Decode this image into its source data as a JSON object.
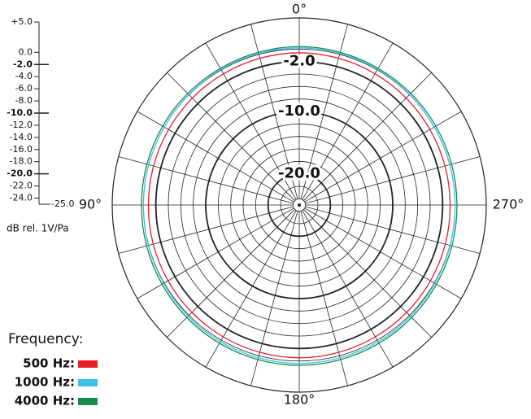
{
  "chart_data": {
    "type": "polar",
    "axis_label": "dB rel. 1V/Pa",
    "rlim": [
      -25,
      5
    ],
    "rticks": [
      {
        "value": 5,
        "label": "+5.0"
      },
      {
        "value": 0,
        "label": "0.0"
      },
      {
        "value": -2,
        "label": "-2.0"
      },
      {
        "value": -4,
        "label": "-4.0"
      },
      {
        "value": -6,
        "label": "-6.0"
      },
      {
        "value": -8,
        "label": "-8.0"
      },
      {
        "value": -10,
        "label": "-10.0"
      },
      {
        "value": -12,
        "label": "-12.0"
      },
      {
        "value": -14,
        "label": "-14.0"
      },
      {
        "value": -16,
        "label": "-16.0"
      },
      {
        "value": -18,
        "label": "-18.0"
      },
      {
        "value": -20,
        "label": "-20.0"
      },
      {
        "value": -22,
        "label": "-22.0"
      },
      {
        "value": -24,
        "label": "-24.0"
      },
      {
        "value": -25,
        "label": "-25.0"
      }
    ],
    "major_rticks": [
      -2,
      -10,
      -20
    ],
    "thetaticks": [
      0,
      15,
      30,
      45,
      60,
      75,
      90,
      105,
      120,
      135,
      150,
      165,
      180,
      195,
      210,
      225,
      240,
      255,
      270,
      285,
      300,
      315,
      330,
      345
    ],
    "angle_labels": [
      {
        "value": 0,
        "label": "0°"
      },
      {
        "value": 90,
        "label": "90°"
      },
      {
        "value": 180,
        "label": "180°"
      },
      {
        "value": 270,
        "label": "270°"
      }
    ],
    "legend_title": "Frequency:",
    "theta": [
      0,
      15,
      30,
      45,
      60,
      75,
      90,
      105,
      120,
      135,
      150,
      165,
      180,
      195,
      210,
      225,
      240,
      255,
      270,
      285,
      300,
      315,
      330,
      345
    ],
    "series": [
      {
        "name": "500 Hz:",
        "color": "#e3202b",
        "values": [
          -0.6,
          -0.65,
          -0.7,
          -0.75,
          -0.8,
          -0.8,
          -0.8,
          -0.75,
          -0.7,
          -0.65,
          -0.6,
          -0.55,
          -0.5,
          -0.55,
          -0.6,
          -0.65,
          -0.7,
          -0.75,
          -0.8,
          -0.8,
          -0.8,
          -0.75,
          -0.7,
          -0.65
        ]
      },
      {
        "name": "1000 Hz:",
        "color": "#3cbfea",
        "values": [
          0.2,
          0.15,
          0.1,
          0.05,
          0,
          0,
          0,
          0.05,
          0.1,
          0.2,
          0.3,
          0.35,
          0.4,
          0.35,
          0.3,
          0.2,
          0.1,
          0.05,
          0,
          0,
          0,
          0.05,
          0.1,
          0.15
        ]
      },
      {
        "name": "4000 Hz:",
        "color": "#178c4c",
        "values": [
          0.4,
          0.35,
          0.3,
          0.3,
          0.3,
          0.3,
          0.3,
          0.35,
          0.4,
          0.5,
          0.6,
          0.65,
          0.7,
          0.65,
          0.6,
          0.5,
          0.4,
          0.35,
          0.3,
          0.3,
          0.3,
          0.3,
          0.3,
          0.35
        ]
      }
    ]
  }
}
